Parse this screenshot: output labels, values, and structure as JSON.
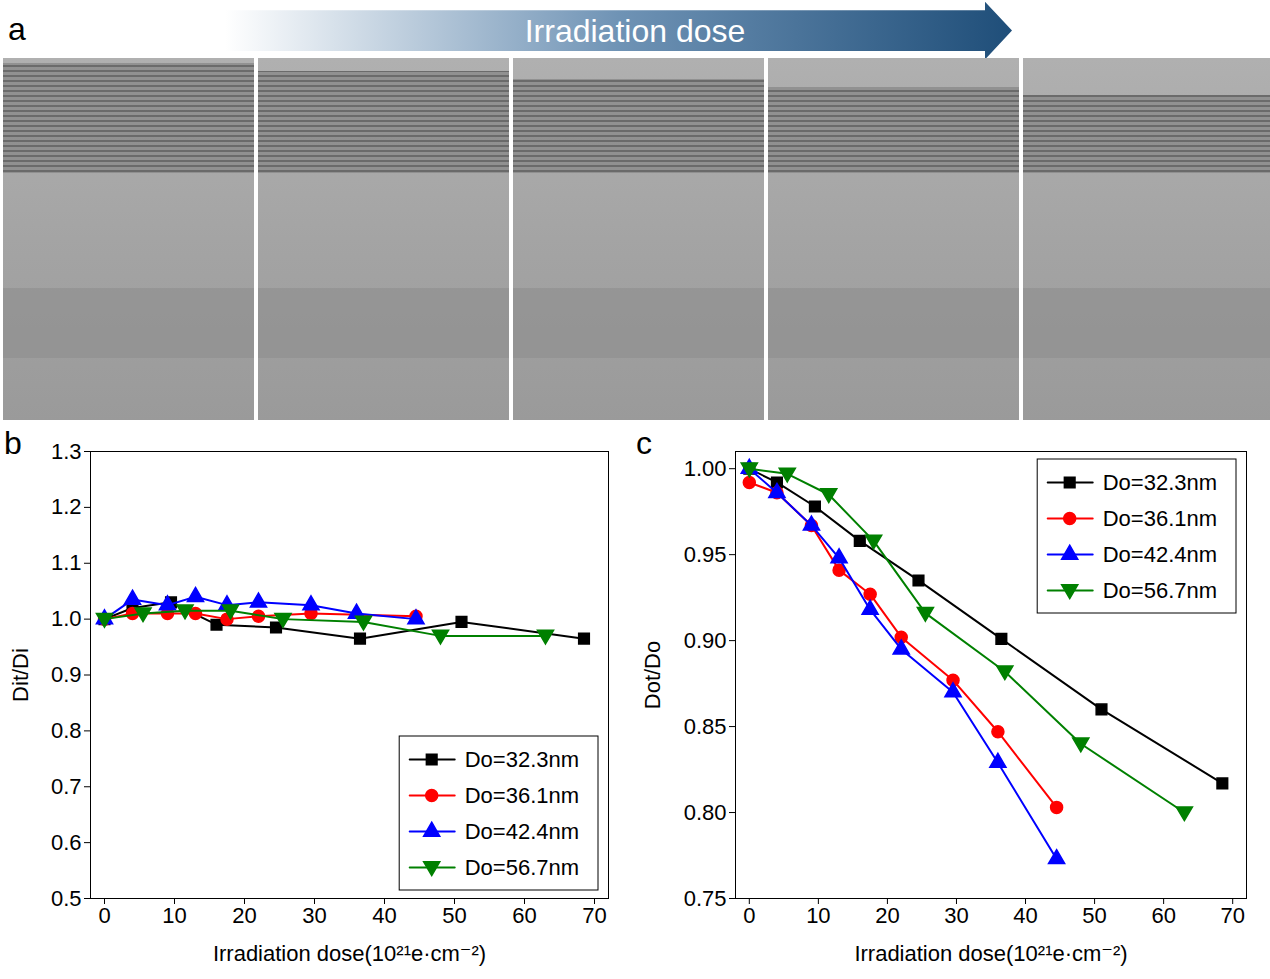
{
  "panel_a": {
    "panel": "a",
    "arrow_label": "Irradiation dose"
  },
  "chart_data": [
    {
      "panel": "b",
      "type": "line",
      "x_label": "Irradiation dose(10²¹e·cm⁻²)",
      "y_label": "Dit/Di",
      "xlim": [
        -2,
        72
      ],
      "xticks": [
        0,
        10,
        20,
        30,
        40,
        50,
        60,
        70
      ],
      "ylim": [
        0.5,
        1.3
      ],
      "yticks": [
        0.5,
        0.6,
        0.7,
        0.8,
        0.9,
        {
          "value": 1,
          "label": "1.0"
        },
        1.1,
        1.2,
        1.3
      ],
      "legend": "lower right",
      "series": [
        {
          "name": "Do=32.3nm",
          "color": "#000000",
          "marker": "square",
          "x": [
            0,
            4,
            9.5,
            16,
            24.5,
            36.5,
            51,
            68.5
          ],
          "values": [
            1.0,
            1.02,
            1.03,
            0.99,
            0.985,
            0.965,
            0.995,
            0.965
          ]
        },
        {
          "name": "Do=36.1nm",
          "color": "#ff0000",
          "marker": "circle",
          "x": [
            0,
            4,
            9,
            13,
            17.5,
            22,
            29.5,
            44.5
          ],
          "values": [
            1.0,
            1.01,
            1.01,
            1.01,
            1.0,
            1.005,
            1.01,
            1.005
          ]
        },
        {
          "name": "Do=42.4nm",
          "color": "#0000ff",
          "marker": "triangle",
          "x": [
            0,
            4,
            9,
            13,
            17.5,
            22,
            29.5,
            36,
            44.5
          ],
          "values": [
            1.0,
            1.035,
            1.025,
            1.04,
            1.025,
            1.03,
            1.025,
            1.01,
            1.0
          ]
        },
        {
          "name": "Do=56.7nm",
          "color": "#008000",
          "marker": "triangle-down",
          "x": [
            0,
            5.5,
            11.5,
            18,
            25.5,
            37,
            48,
            63
          ],
          "values": [
            1.0,
            1.01,
            1.015,
            1.015,
            1.0,
            0.995,
            0.97,
            0.97
          ]
        }
      ]
    },
    {
      "panel": "c",
      "type": "line",
      "x_label": "Irradiation dose(10²¹e·cm⁻²)",
      "y_label": "Dot/Do",
      "xlim": [
        -2,
        72
      ],
      "xticks": [
        0,
        10,
        20,
        30,
        40,
        50,
        60,
        70
      ],
      "ylim": [
        0.75,
        1.01
      ],
      "yticks": [
        0.75,
        {
          "value": 0.8,
          "label": "0.80"
        },
        0.85,
        {
          "value": 0.9,
          "label": "0.90"
        },
        0.95,
        {
          "value": 1,
          "label": "1.00"
        }
      ],
      "legend": "upper right",
      "series": [
        {
          "name": "Do=32.3nm",
          "color": "#000000",
          "marker": "square",
          "x": [
            0,
            4,
            9.5,
            16,
            24.5,
            36.5,
            51,
            68.5
          ],
          "values": [
            1.0,
            0.992,
            0.978,
            0.958,
            0.935,
            0.901,
            0.86,
            0.817
          ]
        },
        {
          "name": "Do=36.1nm",
          "color": "#ff0000",
          "marker": "circle",
          "x": [
            0,
            4,
            9,
            13,
            17.5,
            22,
            29.5,
            36,
            44.5
          ],
          "values": [
            0.992,
            0.986,
            0.967,
            0.941,
            0.927,
            0.902,
            0.877,
            0.847,
            0.803
          ]
        },
        {
          "name": "Do=42.4nm",
          "color": "#0000ff",
          "marker": "triangle",
          "x": [
            0,
            4,
            9,
            13,
            17.5,
            22,
            29.5,
            36,
            44.5
          ],
          "values": [
            1.0,
            0.986,
            0.967,
            0.948,
            0.918,
            0.895,
            0.87,
            0.829,
            0.773
          ]
        },
        {
          "name": "Do=56.7nm",
          "color": "#008000",
          "marker": "triangle-down",
          "x": [
            0,
            5.5,
            11.5,
            18,
            25.5,
            37,
            48,
            63
          ],
          "values": [
            1.0,
            0.997,
            0.985,
            0.958,
            0.916,
            0.882,
            0.84,
            0.8
          ]
        }
      ]
    }
  ]
}
